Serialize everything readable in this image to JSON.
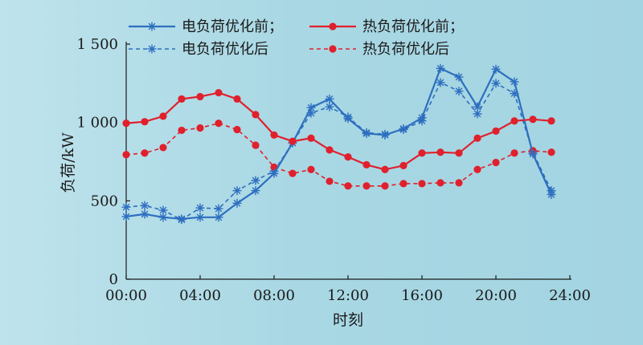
{
  "chart_data": {
    "type": "line",
    "xlabel": "时刻",
    "ylabel": "负荷/kW",
    "xlim": [
      0,
      24
    ],
    "ylim": [
      0,
      1500
    ],
    "x_ticks": [
      0,
      4,
      8,
      12,
      16,
      20,
      24
    ],
    "x_tick_labels": [
      "00:00",
      "04:00",
      "08:00",
      "12:00",
      "16:00",
      "20:00",
      "24:00"
    ],
    "y_ticks": [
      0,
      500,
      1000,
      1500
    ],
    "y_tick_labels": [
      "0",
      "500",
      "1 000",
      "1 500"
    ],
    "legend_position": "top",
    "x": [
      0,
      1,
      2,
      3,
      4,
      5,
      6,
      7,
      8,
      9,
      10,
      11,
      12,
      13,
      14,
      15,
      16,
      17,
      18,
      19,
      20,
      21,
      22,
      23,
      24
    ],
    "series": [
      {
        "name": "电负荷优化前；",
        "color": "#2e6fc0",
        "line_style": "solid",
        "marker": "asterisk",
        "values": [
          400,
          415,
          395,
          385,
          395,
          395,
          485,
          565,
          675,
          870,
          1095,
          1150,
          1025,
          930,
          920,
          960,
          1030,
          1345,
          1290,
          1100,
          1340,
          1260,
          800,
          540,
          null
        ]
      },
      {
        "name": "热负荷优化前；",
        "color": "#e0202c",
        "line_style": "solid",
        "marker": "dot",
        "values": [
          995,
          1005,
          1040,
          1150,
          1165,
          1190,
          1150,
          1050,
          920,
          880,
          900,
          825,
          780,
          730,
          700,
          725,
          805,
          810,
          805,
          900,
          945,
          1010,
          1020,
          1010,
          null
        ]
      },
      {
        "name": "电负荷优化后",
        "color": "#2e6fc0",
        "line_style": "dashed",
        "marker": "asterisk",
        "values": [
          460,
          470,
          440,
          380,
          455,
          450,
          565,
          630,
          690,
          870,
          1060,
          1100,
          1035,
          935,
          925,
          955,
          1010,
          1255,
          1200,
          1055,
          1250,
          1185,
          810,
          565,
          null
        ]
      },
      {
        "name": "热负荷优化后",
        "color": "#e0202c",
        "line_style": "dashed",
        "marker": "dot",
        "values": [
          795,
          805,
          840,
          950,
          965,
          995,
          955,
          855,
          715,
          675,
          700,
          625,
          595,
          595,
          595,
          610,
          610,
          615,
          615,
          700,
          745,
          805,
          820,
          810,
          null
        ]
      }
    ]
  }
}
